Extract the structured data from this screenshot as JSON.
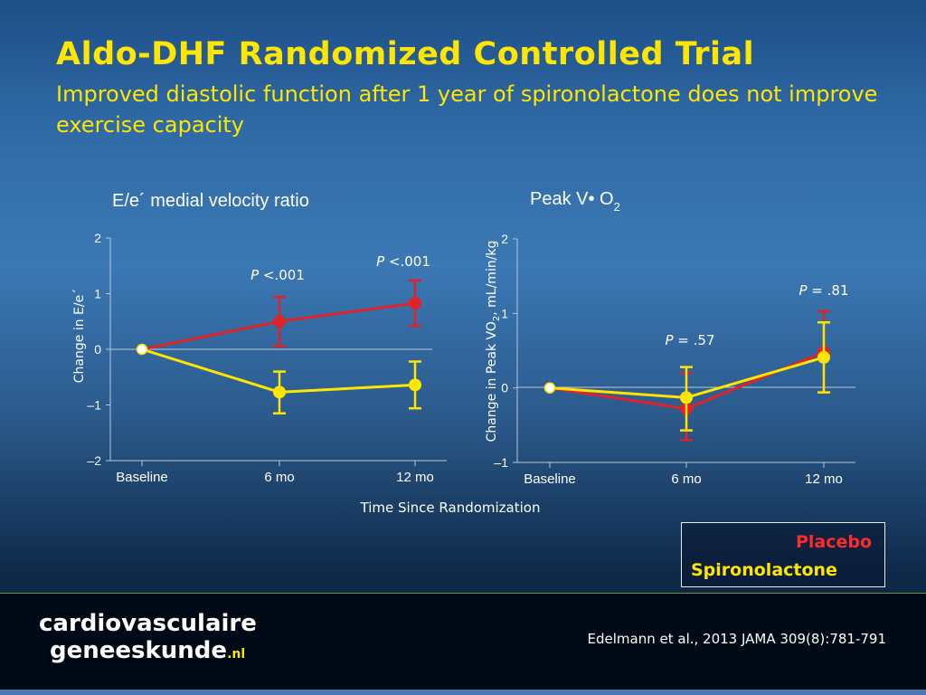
{
  "title": "Aldo-DHF Randomized Controlled Trial",
  "subtitle": "Improved diastolic function after 1 year of spironolactone does not improve exercise capacity",
  "shared_xlabel": "Time Since Randomization",
  "legend": {
    "placebo": "Placebo",
    "spironolactone": "Spironolactone"
  },
  "colors": {
    "placebo": "#e0222a",
    "spironolactone": "#ffe600",
    "title": "#ffe600"
  },
  "footer": {
    "brand_line1": "cardiovasculaire",
    "brand_line2": "geneeskunde",
    "brand_suffix": ".nl",
    "citation": "Edelmann et al., 2013 JAMA 309(8):781-791"
  },
  "chart_data": [
    {
      "type": "line",
      "title": "E/e´ medial velocity ratio",
      "ylabel": "Change in E/e´",
      "categories": [
        "Baseline",
        "6 mo",
        "12 mo"
      ],
      "yticks": [
        "2",
        "1",
        "0",
        "–1",
        "–2"
      ],
      "ylim": [
        -2,
        2
      ],
      "series": [
        {
          "name": "Placebo",
          "values": [
            0,
            0.5,
            0.83
          ],
          "err_low": [
            0,
            0.05,
            0.42
          ],
          "err_high": [
            0,
            0.94,
            1.24
          ]
        },
        {
          "name": "Spironolactone",
          "values": [
            0,
            -0.77,
            -0.64
          ],
          "err_low": [
            0,
            -1.15,
            -1.06
          ],
          "err_high": [
            0,
            -0.4,
            -0.22
          ]
        }
      ],
      "annotations": [
        {
          "italic": "P",
          "text": " <.001",
          "category": "6 mo"
        },
        {
          "italic": "P",
          "text": " <.001",
          "category": "12 mo"
        }
      ]
    },
    {
      "type": "line",
      "title": "Peak V• O",
      "title_sub": "2",
      "ylabel": "Change in Peak VO",
      "ylabel_sub": "2",
      "ylabel_unit": ", mL/min/kg",
      "categories": [
        "Baseline",
        "6 mo",
        "12 mo"
      ],
      "yticks": [
        "2",
        "1",
        "0",
        "–1"
      ],
      "ylim": [
        -1,
        2
      ],
      "series": [
        {
          "name": "Placebo",
          "values": [
            0,
            -0.28,
            0.48
          ],
          "err_low": [
            0,
            -0.7,
            -0.06
          ],
          "err_high": [
            0,
            0.2,
            1.03
          ]
        },
        {
          "name": "Spironolactone",
          "values": [
            0,
            -0.13,
            0.41
          ],
          "err_low": [
            0,
            -0.57,
            -0.06
          ],
          "err_high": [
            0,
            0.28,
            0.88
          ]
        }
      ],
      "annotations": [
        {
          "italic": "P",
          "text": " = .57",
          "category": "6 mo"
        },
        {
          "italic": "P",
          "text": " = .81",
          "category": "12 mo"
        }
      ]
    }
  ]
}
